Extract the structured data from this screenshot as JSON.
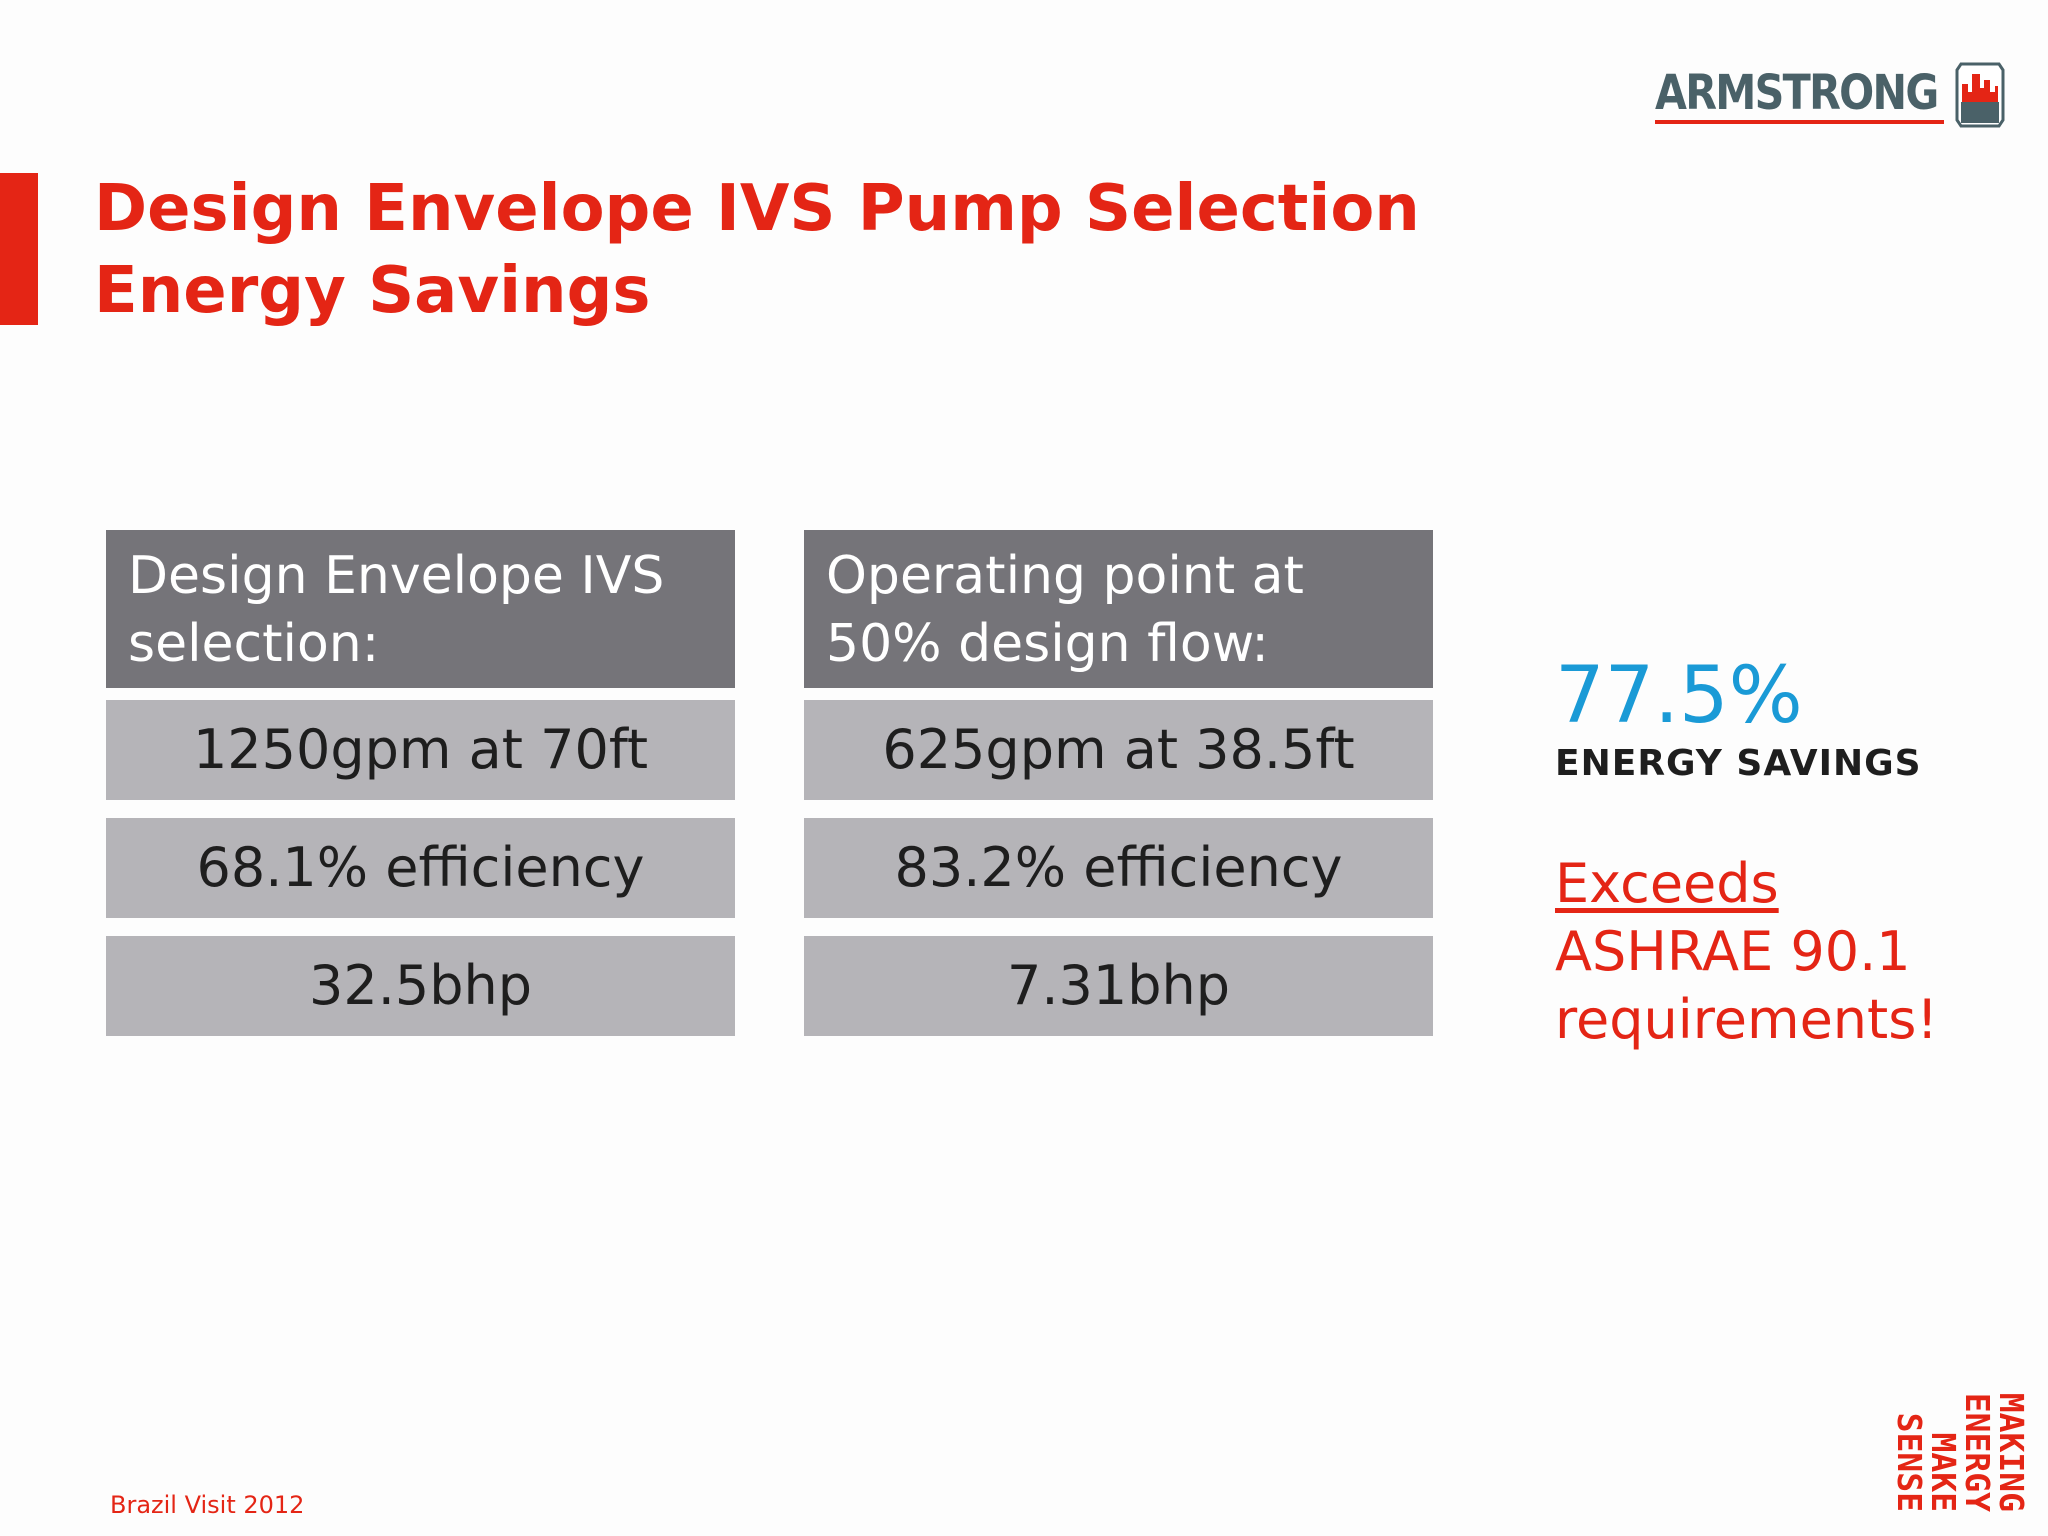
{
  "logo": {
    "text": "ARMSTRONG",
    "colors": {
      "text": "#4a6168",
      "accent": "#e42515"
    }
  },
  "title": {
    "line1": "Design Envelope IVS Pump Selection",
    "line2": "Energy Savings",
    "color": "#e42515"
  },
  "left_table": {
    "header_line1": "Design Envelope IVS",
    "header_line2": "selection:",
    "rows": [
      "1250gpm at 70ft",
      "68.1% efficiency",
      "32.5bhp"
    ]
  },
  "right_table": {
    "header_line1": "Operating point at",
    "header_line2": "50% design flow:",
    "rows": [
      "625gpm at 38.5ft",
      "83.2% efficiency",
      "7.31bhp"
    ]
  },
  "savings": {
    "value": "77.5%",
    "label": "ENERGY SAVINGS",
    "value_color": "#1a9ad6"
  },
  "note": {
    "line1": "Exceeds",
    "line2": "ASHRAE 90.1",
    "line3": "requirements!"
  },
  "footer": {
    "text": "Brazil Visit 2012",
    "tagline": [
      "MAKING",
      "ENERGY",
      "MAKE",
      "SENSE"
    ]
  }
}
